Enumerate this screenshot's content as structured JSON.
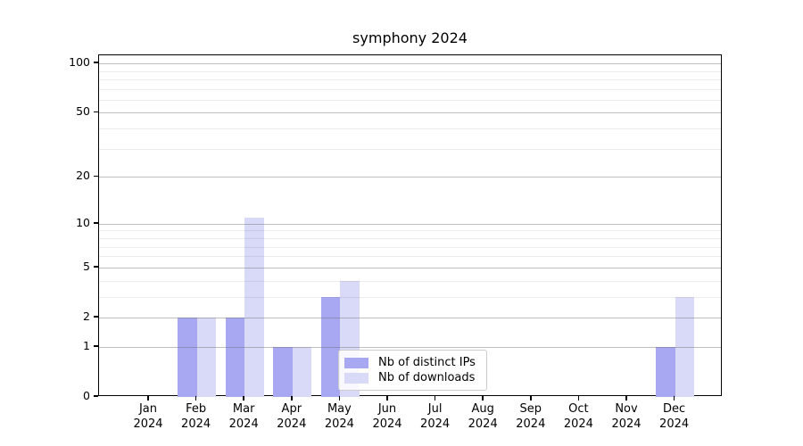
{
  "chart_data": {
    "type": "bar",
    "title": "symphony 2024",
    "categories": [
      "Jan",
      "Feb",
      "Mar",
      "Apr",
      "May",
      "Jun",
      "Jul",
      "Aug",
      "Sep",
      "Oct",
      "Nov",
      "Dec"
    ],
    "x_year_label": "2024",
    "series": [
      {
        "name": "Nb of distinct IPs",
        "color": "#a7a7f2",
        "values": [
          0,
          2,
          2,
          1,
          3,
          0,
          0,
          0,
          0,
          0,
          0,
          1
        ]
      },
      {
        "name": "Nb of downloads",
        "color": "#d9d9f8",
        "values": [
          0,
          2,
          11,
          1,
          4,
          0,
          0,
          0,
          0,
          0,
          0,
          3
        ]
      }
    ],
    "yscale": "log1p",
    "ylim": [
      0,
      112
    ],
    "yticks": [
      100,
      50,
      20,
      10,
      5,
      2,
      1,
      0
    ],
    "yticks_minor": [
      90,
      80,
      70,
      60,
      40,
      30,
      9,
      8,
      7,
      6,
      4,
      3
    ],
    "grid": true,
    "grid_color": "#b0b0b0",
    "legend": {
      "position": "lower center"
    }
  }
}
